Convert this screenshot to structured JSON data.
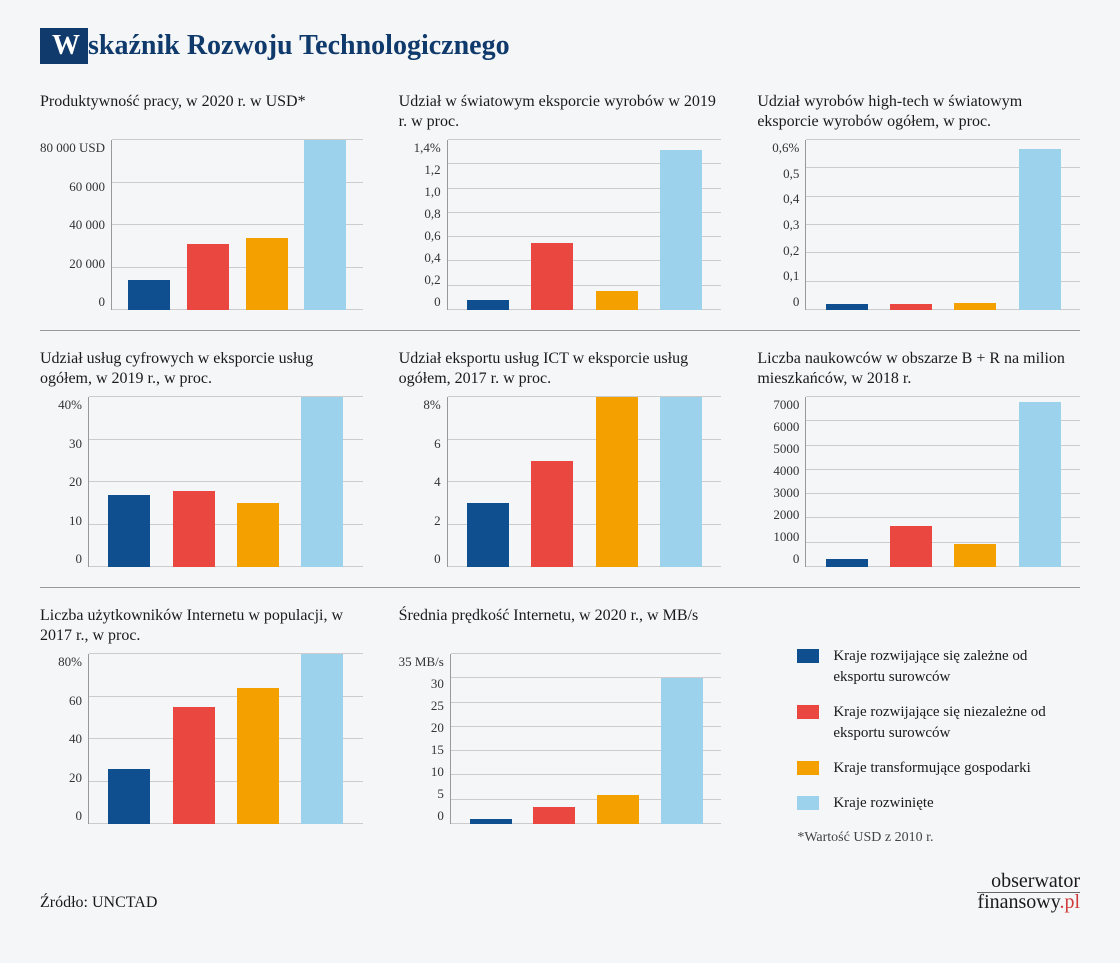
{
  "title_first_letter": "W",
  "title_rest": "skaźnik Rozwoju Technologicznego",
  "source_label": "Źródło: UNCTAD",
  "brand_top": "obserwator",
  "brand_fin": "finansowy",
  "brand_pl": ".pl",
  "colors": {
    "c1": "#0f4f8f",
    "c2": "#e9473f",
    "c3": "#f4a100",
    "c4": "#9dd2ed",
    "grid": "#cccccc",
    "axis": "#999999"
  },
  "legend": {
    "items": [
      {
        "color_key": "c1",
        "label": "Kraje rozwijające się zależne od eksportu surowców"
      },
      {
        "color_key": "c2",
        "label": "Kraje rozwijające się niezależne od eksportu surowców"
      },
      {
        "color_key": "c3",
        "label": "Kraje transformujące gospodarki"
      },
      {
        "color_key": "c4",
        "label": "Kraje rozwinięte"
      }
    ],
    "note": "*Wartość USD z 2010 r."
  },
  "charts": [
    {
      "title": "Produktywność pracy, w 2020 r. w USD*",
      "ymax": 80000,
      "ticks": [
        0,
        20000,
        40000,
        60000,
        80000
      ],
      "tick_labels": [
        "0",
        "20 000",
        "40 000",
        "60 000",
        "80 000 USD"
      ],
      "values": [
        14000,
        31000,
        34000,
        86000
      ]
    },
    {
      "title": "Udział w światowym eksporcie wyrobów w 2019 r. w proc.",
      "ymax": 1.4,
      "ticks": [
        0,
        0.2,
        0.4,
        0.6,
        0.8,
        1.0,
        1.2,
        1.4
      ],
      "tick_labels": [
        "0",
        "0,2",
        "0,4",
        "0,6",
        "0,8",
        "1,0",
        "1,2",
        "1,4%"
      ],
      "values": [
        0.08,
        0.55,
        0.16,
        1.32
      ]
    },
    {
      "title": "Udział wyrobów high-tech w światowym eksporcie wyrobów ogółem, w proc.",
      "ymax": 0.6,
      "ticks": [
        0,
        0.1,
        0.2,
        0.3,
        0.4,
        0.5,
        0.6
      ],
      "tick_labels": [
        "0",
        "0,1",
        "0,2",
        "0,3",
        "0,4",
        "0,5",
        "0,6%"
      ],
      "values": [
        0.02,
        0.02,
        0.025,
        0.57
      ]
    },
    {
      "title": "Udział usług cyfrowych w eksporcie usług ogółem, w 2019 r., w proc.",
      "ymax": 40,
      "ticks": [
        0,
        10,
        20,
        30,
        40
      ],
      "tick_labels": [
        "0",
        "10",
        "20",
        "30",
        "40%"
      ],
      "values": [
        17,
        18,
        15,
        40
      ]
    },
    {
      "title": "Udział eksportu usług ICT w eksporcie usług ogółem, 2017 r. w proc.",
      "ymax": 8,
      "ticks": [
        0,
        2,
        4,
        6,
        8
      ],
      "tick_labels": [
        "0",
        "2",
        "4",
        "6",
        "8%"
      ],
      "values": [
        3,
        5,
        8,
        8
      ]
    },
    {
      "title": "Liczba naukowców w obszarze B + R na milion mieszkańców, w 2018 r.",
      "ymax": 7000,
      "ticks": [
        0,
        1000,
        2000,
        3000,
        4000,
        5000,
        6000,
        7000
      ],
      "tick_labels": [
        "0",
        "1000",
        "2000",
        "3000",
        "4000",
        "5000",
        "6000",
        "7000"
      ],
      "values": [
        350,
        1700,
        950,
        6800
      ]
    },
    {
      "title": "Liczba użytkowników Internetu w populacji, w 2017 r., w proc.",
      "ymax": 80,
      "ticks": [
        0,
        20,
        40,
        60,
        80
      ],
      "tick_labels": [
        "0",
        "20",
        "40",
        "60",
        "80%"
      ],
      "values": [
        26,
        55,
        64,
        86
      ]
    },
    {
      "title": "Średnia prędkość Internetu, w 2020 r., w MB/s",
      "ymax": 35,
      "ticks": [
        0,
        5,
        10,
        15,
        20,
        25,
        30,
        35
      ],
      "tick_labels": [
        "0",
        "5",
        "10",
        "15",
        "20",
        "25",
        "30",
        "35 MB/s"
      ],
      "values": [
        1,
        3.5,
        6,
        30
      ]
    }
  ]
}
